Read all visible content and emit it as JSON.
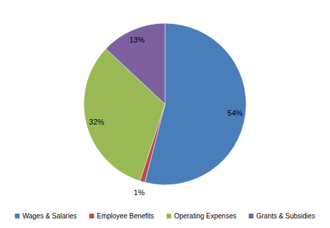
{
  "chart_data": {
    "type": "pie",
    "categories": [
      "Wages & Salaries",
      "Employee Benefits",
      "Operating Expenses",
      "Grants & Subsidies"
    ],
    "values": [
      54,
      1,
      32,
      13
    ],
    "value_labels": [
      "54%",
      "1%",
      "32%",
      "13%"
    ],
    "colors": [
      "#4a7ebb",
      "#be4b48",
      "#98b954",
      "#7d60a0"
    ],
    "data_labels": true,
    "legend": "bottom"
  }
}
